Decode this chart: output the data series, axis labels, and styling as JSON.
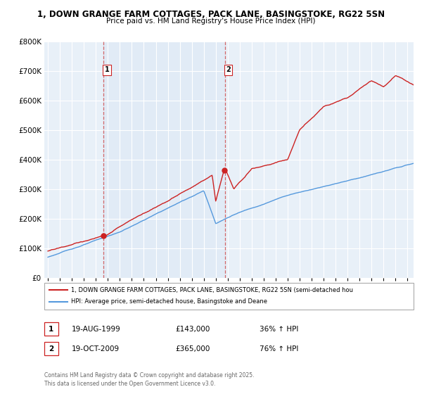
{
  "title1": "1, DOWN GRANGE FARM COTTAGES, PACK LANE, BASINGSTOKE, RG22 5SN",
  "title2": "Price paid vs. HM Land Registry's House Price Index (HPI)",
  "bg_color": "#ffffff",
  "plot_bg_color": "#e8f0f8",
  "grid_color": "#ffffff",
  "property_color": "#cc2222",
  "hpi_color": "#5599dd",
  "purchase1_date": "19-AUG-1999",
  "purchase1_price": 143000,
  "purchase1_hpi": "36% ↑ HPI",
  "purchase2_date": "19-OCT-2009",
  "purchase2_price": 365000,
  "purchase2_hpi": "76% ↑ HPI",
  "legend_property": "1, DOWN GRANGE FARM COTTAGES, PACK LANE, BASINGSTOKE, RG22 5SN (semi-detached hou",
  "legend_hpi": "HPI: Average price, semi-detached house, Basingstoke and Deane",
  "footer": "Contains HM Land Registry data © Crown copyright and database right 2025.\nThis data is licensed under the Open Government Licence v3.0.",
  "ylim_max": 800000,
  "ylim_min": 0,
  "vline1_x": 1999.63,
  "vline2_x": 2009.75,
  "xmin": 1995.0,
  "xmax": 2025.5
}
